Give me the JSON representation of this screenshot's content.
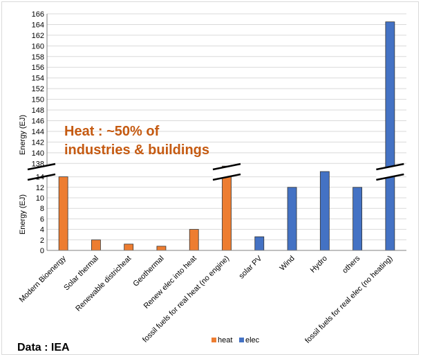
{
  "chart_data": {
    "type": "bar",
    "broken_axis": true,
    "ylabel": "Energy (EJ)",
    "upper_yticks": [
      138,
      140,
      142,
      144,
      146,
      148,
      150,
      152,
      154,
      156,
      158,
      160,
      162,
      164,
      166
    ],
    "lower_yticks": [
      0,
      2,
      4,
      6,
      8,
      10,
      12,
      14
    ],
    "categories": [
      "Modern Bioenergy",
      "Solar thermal",
      "Renewable districheat",
      "Geothermal",
      "Renew elec into heat",
      "fossil fuels for real heat (no engine)",
      "solar PV",
      "Wind",
      "Hydro",
      "others",
      "fossil fuels for real elec (no heating)"
    ],
    "series": [
      {
        "name": "heat",
        "color": "#ed7d31",
        "values": [
          14,
          2,
          1.2,
          0.8,
          4,
          137.5,
          null,
          null,
          null,
          null,
          null
        ]
      },
      {
        "name": "elec",
        "color": "#4472c4",
        "values": [
          null,
          null,
          null,
          null,
          null,
          null,
          2.6,
          12,
          15,
          12,
          164.5
        ]
      }
    ],
    "legend_position": "bottom",
    "grid": "horizontal",
    "annotation": [
      "Heat : ~50% of",
      "industries & buildings"
    ],
    "source": "Data : IEA"
  }
}
